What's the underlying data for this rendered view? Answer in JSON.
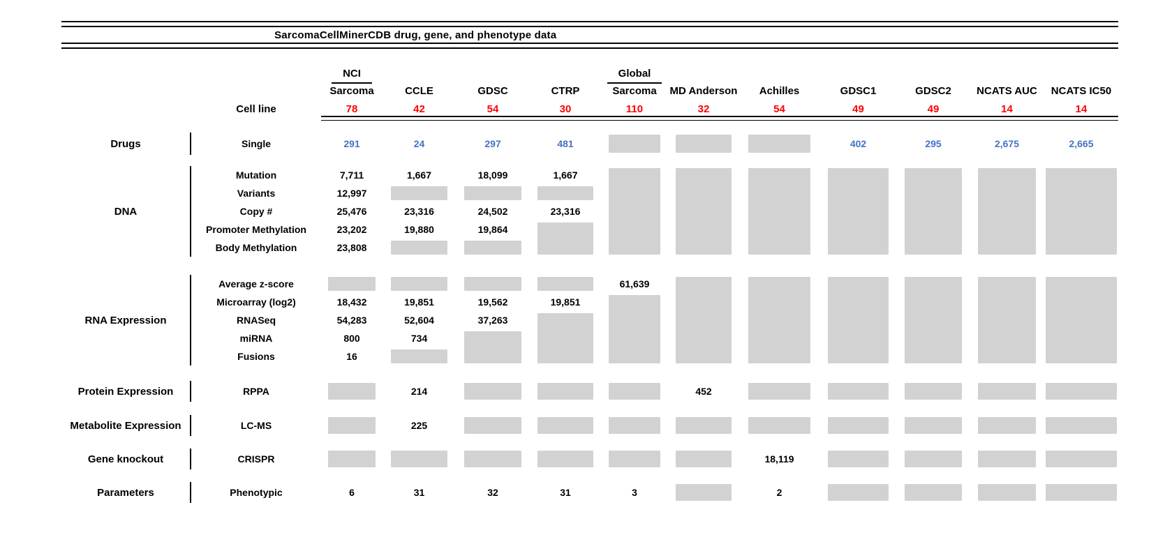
{
  "colors": {
    "red": "#ff0000",
    "blue": "#4472c4",
    "gray_box": "#d2d2d2",
    "line": "#000000"
  },
  "chart_data": {
    "type": "table",
    "title": "SarcomaCellMinerCDB drug, gene, and phenotype data",
    "columns": [
      {
        "top": "NCI",
        "label": "Sarcoma"
      },
      {
        "label": "CCLE"
      },
      {
        "label": "GDSC"
      },
      {
        "label": "CTRP"
      },
      {
        "top": "Global",
        "label": "Sarcoma"
      },
      {
        "label": "MD Anderson"
      },
      {
        "label": "Achilles"
      },
      {
        "label": "GDSC1"
      },
      {
        "label": "GDSC2"
      },
      {
        "label": "NCATS AUC"
      },
      {
        "label": "NCATS IC50"
      }
    ],
    "cell_line_row": {
      "label": "Cell line",
      "color": "red",
      "values": [
        "78",
        "42",
        "54",
        "30",
        "110",
        "32",
        "54",
        "49",
        "49",
        "14",
        "14"
      ]
    },
    "sections": [
      {
        "category": "Drugs",
        "value_color": "blue",
        "rows": [
          {
            "label": "Single",
            "cells": [
              "291",
              "24",
              "297",
              "481",
              {
                "na": 1
              },
              {
                "na": 1
              },
              {
                "na": 1
              },
              "402",
              "295",
              "2,675",
              "2,665"
            ]
          }
        ]
      },
      {
        "category": "DNA",
        "rows": [
          {
            "label": "Mutation",
            "cells": [
              "7,711",
              "1,667",
              "18,099",
              "1,667",
              {
                "na": 5
              },
              {
                "na": 5
              },
              {
                "na": 5
              },
              {
                "na": 5
              },
              {
                "na": 5
              },
              {
                "na": 5
              },
              {
                "na": 5
              }
            ]
          },
          {
            "label": "Variants",
            "cells": [
              "12,997",
              {
                "na": 1
              },
              {
                "na": 1
              },
              {
                "na": 1
              },
              null,
              null,
              null,
              null,
              null,
              null,
              null
            ]
          },
          {
            "label": "Copy #",
            "cells": [
              "25,476",
              "23,316",
              "24,502",
              "23,316",
              null,
              null,
              null,
              null,
              null,
              null,
              null
            ]
          },
          {
            "label": "Promoter Methylation",
            "cells": [
              "23,202",
              "19,880",
              "19,864",
              {
                "na": 2
              },
              null,
              null,
              null,
              null,
              null,
              null,
              null
            ]
          },
          {
            "label": "Body Methylation",
            "cells": [
              "23,808",
              {
                "na": 1
              },
              {
                "na": 1
              },
              null,
              null,
              null,
              null,
              null,
              null,
              null,
              null
            ]
          }
        ]
      },
      {
        "category": "RNA Expression",
        "rows": [
          {
            "label": "Average z-score",
            "cells": [
              {
                "na": 1
              },
              {
                "na": 1
              },
              {
                "na": 1
              },
              {
                "na": 1
              },
              "61,639",
              {
                "na": 5
              },
              {
                "na": 5
              },
              {
                "na": 5
              },
              {
                "na": 5
              },
              {
                "na": 5
              },
              {
                "na": 5
              }
            ]
          },
          {
            "label": "Microarray (log2)",
            "cells": [
              "18,432",
              "19,851",
              "19,562",
              "19,851",
              {
                "na": 4
              },
              null,
              null,
              null,
              null,
              null,
              null
            ]
          },
          {
            "label": "RNASeq",
            "cells": [
              "54,283",
              "52,604",
              "37,263",
              {
                "na": 3
              },
              null,
              null,
              null,
              null,
              null,
              null,
              null
            ]
          },
          {
            "label": "miRNA",
            "cells": [
              "800",
              "734",
              {
                "na": 2
              },
              null,
              null,
              null,
              null,
              null,
              null,
              null,
              null
            ]
          },
          {
            "label": "Fusions",
            "cells": [
              "16",
              {
                "na": 1
              },
              null,
              null,
              null,
              null,
              null,
              null,
              null,
              null,
              null
            ]
          }
        ]
      },
      {
        "category": "Protein Expression",
        "rows": [
          {
            "label": "RPPA",
            "cells": [
              {
                "na": 1
              },
              "214",
              {
                "na": 1
              },
              {
                "na": 1
              },
              {
                "na": 1
              },
              "452",
              {
                "na": 1
              },
              {
                "na": 1
              },
              {
                "na": 1
              },
              {
                "na": 1
              },
              {
                "na": 1
              }
            ]
          }
        ]
      },
      {
        "category": "Metabolite Expression",
        "rows": [
          {
            "label": "LC-MS",
            "cells": [
              {
                "na": 1
              },
              "225",
              {
                "na": 1
              },
              {
                "na": 1
              },
              {
                "na": 1
              },
              {
                "na": 1
              },
              {
                "na": 1
              },
              {
                "na": 1
              },
              {
                "na": 1
              },
              {
                "na": 1
              },
              {
                "na": 1
              }
            ]
          }
        ]
      },
      {
        "category": "Gene knockout",
        "rows": [
          {
            "label": "CRISPR",
            "cells": [
              {
                "na": 1
              },
              {
                "na": 1
              },
              {
                "na": 1
              },
              {
                "na": 1
              },
              {
                "na": 1
              },
              {
                "na": 1
              },
              "18,119",
              {
                "na": 1
              },
              {
                "na": 1
              },
              {
                "na": 1
              },
              {
                "na": 1
              }
            ]
          }
        ]
      },
      {
        "category": "Parameters",
        "rows": [
          {
            "label": "Phenotypic",
            "cells": [
              "6",
              "31",
              "32",
              "31",
              "3",
              {
                "na": 1
              },
              "2",
              {
                "na": 1
              },
              {
                "na": 1
              },
              {
                "na": 1
              },
              {
                "na": 1
              }
            ]
          }
        ]
      }
    ]
  }
}
